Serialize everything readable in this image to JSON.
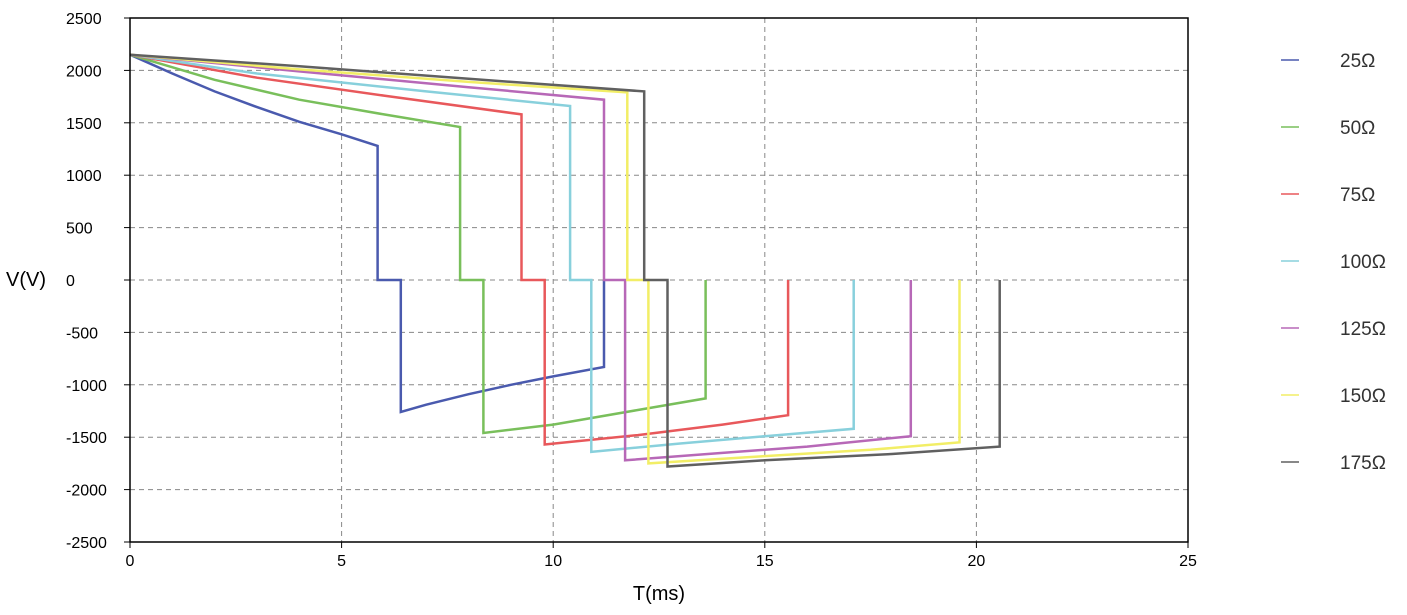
{
  "chart_data": {
    "type": "line",
    "xlabel": "T(ms)",
    "ylabel": "V(V)",
    "xlim": [
      0,
      25
    ],
    "ylim": [
      -2500,
      2500
    ],
    "xticks": [
      "0",
      "5",
      "10",
      "15",
      "20",
      "25"
    ],
    "yticks": [
      "2500",
      "2000",
      "1500",
      "1000",
      "500",
      "0",
      "-500",
      "-1000",
      "-1500",
      "-2000",
      "-2500"
    ],
    "grid": true,
    "legend_position": "right",
    "series": [
      {
        "name": "25Ω",
        "color": "#4a5aae",
        "points": [
          [
            0,
            2150
          ],
          [
            1,
            1970
          ],
          [
            2,
            1800
          ],
          [
            3,
            1650
          ],
          [
            4,
            1510
          ],
          [
            5,
            1390
          ],
          [
            5.85,
            1280
          ],
          [
            5.85,
            0
          ],
          [
            6.4,
            0
          ],
          [
            6.4,
            -1260
          ],
          [
            7,
            -1190
          ],
          [
            8,
            -1090
          ],
          [
            9,
            -1000
          ],
          [
            10,
            -920
          ],
          [
            11.2,
            -830
          ],
          [
            11.2,
            0
          ]
        ]
      },
      {
        "name": "50Ω",
        "color": "#79bf5b",
        "points": [
          [
            0,
            2150
          ],
          [
            2,
            1910
          ],
          [
            4,
            1720
          ],
          [
            6,
            1580
          ],
          [
            7.8,
            1460
          ],
          [
            7.8,
            0
          ],
          [
            8.35,
            0
          ],
          [
            8.35,
            -1460
          ],
          [
            10,
            -1380
          ],
          [
            12,
            -1240
          ],
          [
            13.6,
            -1130
          ],
          [
            13.6,
            0
          ]
        ]
      },
      {
        "name": "75Ω",
        "color": "#e8585b",
        "points": [
          [
            0,
            2150
          ],
          [
            3,
            1930
          ],
          [
            6,
            1760
          ],
          [
            9.25,
            1580
          ],
          [
            9.25,
            0
          ],
          [
            9.8,
            0
          ],
          [
            9.8,
            -1570
          ],
          [
            12,
            -1480
          ],
          [
            14,
            -1380
          ],
          [
            15.55,
            -1290
          ],
          [
            15.55,
            0
          ]
        ]
      },
      {
        "name": "100Ω",
        "color": "#88d0dc",
        "points": [
          [
            0,
            2150
          ],
          [
            3,
            1970
          ],
          [
            7,
            1800
          ],
          [
            10.4,
            1660
          ],
          [
            10.4,
            0
          ],
          [
            10.9,
            0
          ],
          [
            10.9,
            -1640
          ],
          [
            13,
            -1560
          ],
          [
            15,
            -1490
          ],
          [
            17.1,
            -1420
          ],
          [
            17.1,
            0
          ]
        ]
      },
      {
        "name": "125Ω",
        "color": "#b768b7",
        "points": [
          [
            0,
            2150
          ],
          [
            4,
            1990
          ],
          [
            8,
            1840
          ],
          [
            11.2,
            1720
          ],
          [
            11.2,
            0
          ],
          [
            11.7,
            0
          ],
          [
            11.7,
            -1720
          ],
          [
            14,
            -1650
          ],
          [
            16,
            -1590
          ],
          [
            18.45,
            -1490
          ],
          [
            18.45,
            0
          ]
        ]
      },
      {
        "name": "150Ω",
        "color": "#f2ee66",
        "points": [
          [
            0,
            2150
          ],
          [
            4,
            2010
          ],
          [
            8,
            1890
          ],
          [
            11.75,
            1790
          ],
          [
            11.75,
            0
          ],
          [
            12.25,
            0
          ],
          [
            12.25,
            -1750
          ],
          [
            15,
            -1680
          ],
          [
            17.5,
            -1620
          ],
          [
            19.6,
            -1550
          ],
          [
            19.6,
            0
          ]
        ]
      },
      {
        "name": "175Ω",
        "color": "#606060",
        "points": [
          [
            0,
            2150
          ],
          [
            4,
            2040
          ],
          [
            8,
            1920
          ],
          [
            12.15,
            1800
          ],
          [
            12.15,
            0
          ],
          [
            12.7,
            0
          ],
          [
            12.7,
            -1780
          ],
          [
            15,
            -1720
          ],
          [
            18,
            -1660
          ],
          [
            20.55,
            -1590
          ],
          [
            20.55,
            0
          ]
        ]
      }
    ]
  }
}
